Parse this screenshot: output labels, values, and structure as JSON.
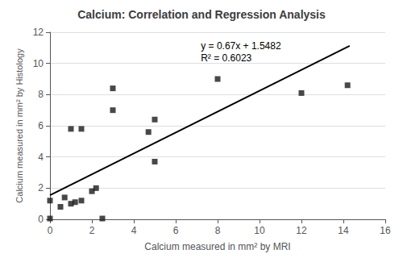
{
  "chart_data": {
    "type": "scatter",
    "title": "Calcium: Correlation and Regression Analysis",
    "xlabel": "Calcium measured in mm² by MRI",
    "ylabel": "Calcium measured in mm² by Histology",
    "series": [
      {
        "type": "scatter",
        "color": "#1a1a1a",
        "marker": "square",
        "x": [
          0.0,
          0.0,
          0.5,
          0.7,
          1.0,
          1.0,
          1.2,
          1.5,
          1.5,
          2.0,
          2.2,
          2.5,
          3.0,
          3.0,
          4.7,
          5.0,
          5.0,
          8.0,
          12.0,
          14.2
        ],
        "values": [
          1.2,
          0.05,
          0.8,
          1.4,
          1.0,
          5.8,
          1.1,
          5.8,
          1.2,
          1.8,
          2.0,
          0.05,
          8.4,
          7.0,
          5.6,
          6.4,
          3.7,
          9.0,
          8.1,
          8.6
        ]
      },
      {
        "type": "line",
        "color": "#000000",
        "line_style": "solid",
        "x": [
          0,
          14.3
        ],
        "values": [
          1.5482,
          11.1292
        ]
      }
    ],
    "annotations": [
      {
        "text": "y = 0.67x + 1.5482\nR² = 0.6023",
        "x": 7.2,
        "y": 11.5
      }
    ],
    "xlim": [
      0,
      16
    ],
    "ylim": [
      0,
      12
    ],
    "xticks": [
      0,
      2,
      4,
      6,
      8,
      10,
      12,
      14,
      16
    ],
    "yticks": [
      0,
      2,
      4,
      6,
      8,
      10,
      12
    ],
    "grid": "y"
  }
}
